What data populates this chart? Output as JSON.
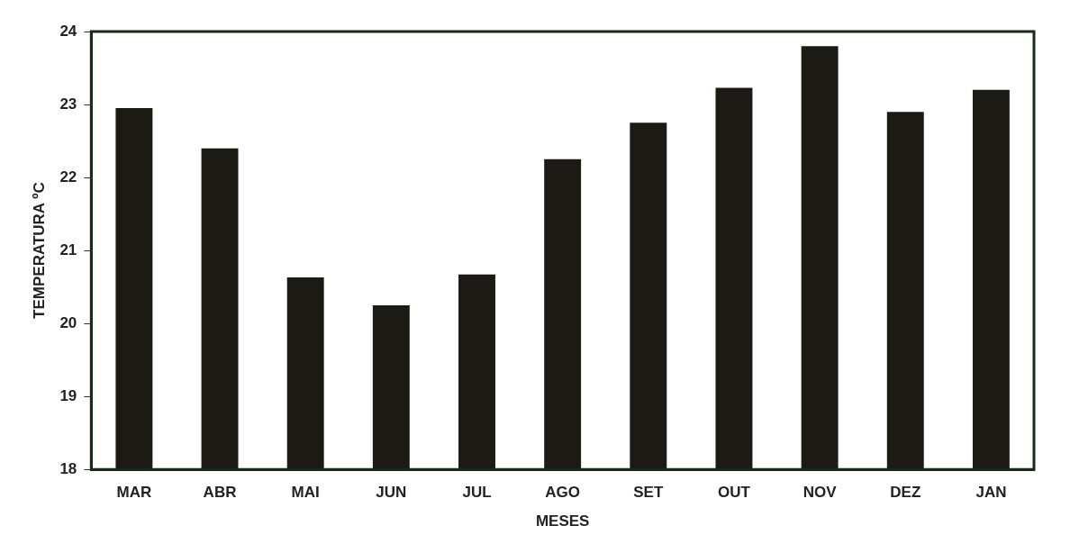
{
  "chart_data": {
    "type": "bar",
    "xlabel": "MESES",
    "ylabel": "TEMPERATURA ºC",
    "categories": [
      "MAR",
      "ABR",
      "MAI",
      "JUN",
      "JUL",
      "AGO",
      "SET",
      "OUT",
      "NOV",
      "DEZ",
      "JAN"
    ],
    "values": [
      22.95,
      22.4,
      20.63,
      20.25,
      20.67,
      22.25,
      22.75,
      23.23,
      23.8,
      22.9,
      23.2
    ],
    "color": "#1c1a14",
    "ylim": [
      18,
      24
    ],
    "yticks": [
      18,
      19,
      20,
      21,
      22,
      23,
      24
    ],
    "grid": false,
    "legend": false
  }
}
